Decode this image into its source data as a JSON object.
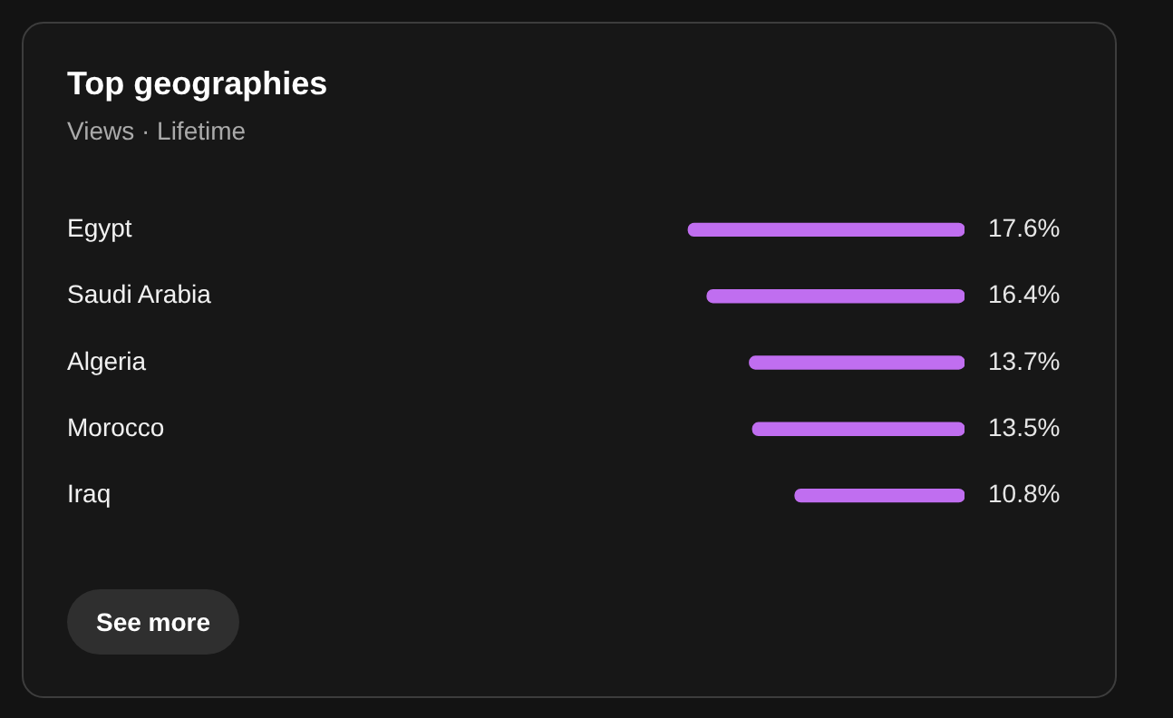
{
  "chart_data": {
    "type": "bar",
    "orientation": "horizontal",
    "title": "Top geographies",
    "subtitle": "Views · Lifetime",
    "categories": [
      "Egypt",
      "Saudi Arabia",
      "Algeria",
      "Morocco",
      "Iraq"
    ],
    "values": [
      17.6,
      16.4,
      13.7,
      13.5,
      10.8
    ],
    "value_labels": [
      "17.6%",
      "16.4%",
      "13.7%",
      "13.5%",
      "10.8%"
    ],
    "color": "#c06ef0",
    "legend": false,
    "tick_labels": "y",
    "annotations": [
      "See more"
    ]
  }
}
